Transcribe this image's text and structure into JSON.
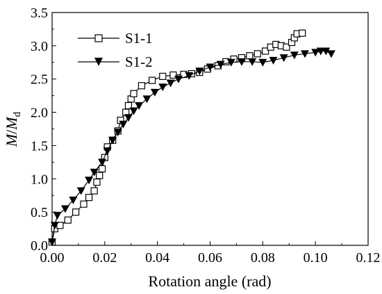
{
  "chart_data": {
    "type": "line",
    "title": "",
    "xlabel": "Rotation angle (rad)",
    "ylabel_main": "M",
    "ylabel_sep": "/",
    "ylabel_den": "M",
    "ylabel_sub": "d",
    "xlim": [
      0,
      0.12
    ],
    "ylim": [
      0,
      3.5
    ],
    "xticks": [
      "0.00",
      "0.02",
      "0.04",
      "0.06",
      "0.08",
      "0.10",
      "0.12"
    ],
    "yticks": [
      "0.0",
      "0.5",
      "1.0",
      "1.5",
      "2.0",
      "2.5",
      "3.0",
      "3.5"
    ],
    "grid": false,
    "legend_position": "top-left",
    "series": [
      {
        "name": "S1-1",
        "marker": "open-square",
        "color": "#000000",
        "points": [
          [
            0.0,
            0.05
          ],
          [
            0.001,
            0.25
          ],
          [
            0.003,
            0.3
          ],
          [
            0.006,
            0.38
          ],
          [
            0.009,
            0.5
          ],
          [
            0.012,
            0.62
          ],
          [
            0.014,
            0.72
          ],
          [
            0.016,
            0.82
          ],
          [
            0.017,
            0.95
          ],
          [
            0.018,
            1.05
          ],
          [
            0.019,
            1.15
          ],
          [
            0.02,
            1.32
          ],
          [
            0.021,
            1.48
          ],
          [
            0.023,
            1.58
          ],
          [
            0.025,
            1.72
          ],
          [
            0.026,
            1.88
          ],
          [
            0.028,
            2.0
          ],
          [
            0.029,
            2.1
          ],
          [
            0.03,
            2.2
          ],
          [
            0.031,
            2.28
          ],
          [
            0.034,
            2.4
          ],
          [
            0.038,
            2.48
          ],
          [
            0.042,
            2.54
          ],
          [
            0.046,
            2.56
          ],
          [
            0.05,
            2.57
          ],
          [
            0.053,
            2.58
          ],
          [
            0.056,
            2.6
          ],
          [
            0.059,
            2.65
          ],
          [
            0.063,
            2.7
          ],
          [
            0.066,
            2.76
          ],
          [
            0.069,
            2.8
          ],
          [
            0.072,
            2.82
          ],
          [
            0.075,
            2.85
          ],
          [
            0.078,
            2.88
          ],
          [
            0.081,
            2.92
          ],
          [
            0.083,
            2.98
          ],
          [
            0.085,
            3.02
          ],
          [
            0.087,
            3.0
          ],
          [
            0.089,
            2.98
          ],
          [
            0.091,
            3.05
          ],
          [
            0.092,
            3.12
          ],
          [
            0.093,
            3.18
          ],
          [
            0.095,
            3.19
          ]
        ]
      },
      {
        "name": "S1-2",
        "marker": "filled-triangle-down",
        "color": "#000000",
        "points": [
          [
            0.0,
            0.05
          ],
          [
            0.001,
            0.3
          ],
          [
            0.002,
            0.45
          ],
          [
            0.005,
            0.55
          ],
          [
            0.008,
            0.68
          ],
          [
            0.011,
            0.82
          ],
          [
            0.014,
            0.98
          ],
          [
            0.016,
            1.1
          ],
          [
            0.019,
            1.25
          ],
          [
            0.021,
            1.42
          ],
          [
            0.023,
            1.58
          ],
          [
            0.025,
            1.7
          ],
          [
            0.027,
            1.82
          ],
          [
            0.029,
            1.92
          ],
          [
            0.031,
            2.02
          ],
          [
            0.033,
            2.1
          ],
          [
            0.036,
            2.2
          ],
          [
            0.039,
            2.3
          ],
          [
            0.042,
            2.38
          ],
          [
            0.045,
            2.44
          ],
          [
            0.048,
            2.5
          ],
          [
            0.052,
            2.55
          ],
          [
            0.056,
            2.62
          ],
          [
            0.06,
            2.68
          ],
          [
            0.064,
            2.72
          ],
          [
            0.068,
            2.75
          ],
          [
            0.072,
            2.76
          ],
          [
            0.076,
            2.76
          ],
          [
            0.08,
            2.75
          ],
          [
            0.084,
            2.78
          ],
          [
            0.088,
            2.82
          ],
          [
            0.092,
            2.86
          ],
          [
            0.096,
            2.88
          ],
          [
            0.1,
            2.9
          ],
          [
            0.102,
            2.92
          ],
          [
            0.104,
            2.92
          ],
          [
            0.106,
            2.88
          ]
        ]
      }
    ]
  }
}
